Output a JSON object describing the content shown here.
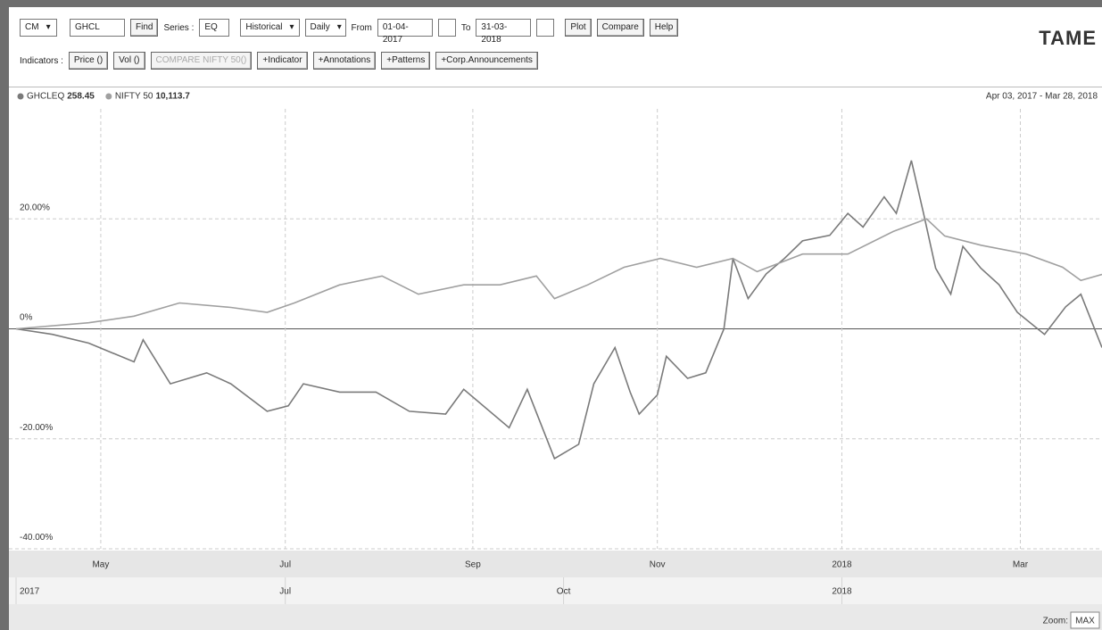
{
  "toolbar": {
    "row1": [
      "CM",
      "GHCL",
      "Find",
      "Series :",
      "EQ",
      "Historical",
      "Daily",
      "From",
      "01-04-2017",
      "To",
      "31-03-2018",
      "Plot",
      "Compare",
      "Help"
    ],
    "row2": [
      "Indicators :",
      "Price ()",
      "Vol ()",
      "COMPARE NIFTY 50()",
      "+Indicator",
      "+Annotations",
      "+Patterns",
      "+Corp.Announcements"
    ],
    "logo": "TAME"
  },
  "chart_data": {
    "type": "line",
    "date_range": "Apr 03, 2017 - Mar 28, 2018",
    "series": [
      {
        "name": "GHCLEQ",
        "last": "258.45",
        "color": "#7a7a7a",
        "x": [
          0,
          12,
          24,
          39,
          42,
          51,
          63,
          71,
          83,
          90,
          95,
          107,
          119,
          130,
          142,
          148,
          163,
          169,
          178,
          186,
          191,
          198,
          203,
          206,
          212,
          215,
          222,
          228,
          234,
          237,
          242,
          248,
          254,
          260,
          269,
          275,
          280,
          287,
          291,
          296,
          300,
          304,
          309,
          313,
          319,
          325,
          331,
          340,
          347,
          352,
          359
        ],
        "values": [
          0,
          -1,
          -2.6,
          -6,
          -2,
          -10,
          -8,
          -10,
          -15,
          -14,
          -10,
          -11.5,
          -11.5,
          -15,
          -15.5,
          -11,
          -18,
          -11,
          -23.6,
          -21,
          -10,
          -3.4,
          -11.5,
          -15.5,
          -12,
          -5,
          -9,
          -8,
          0,
          12.8,
          5.5,
          10,
          12.8,
          16,
          17,
          21,
          18.5,
          24,
          21,
          30.6,
          21,
          11,
          6.3,
          15,
          11,
          8,
          3,
          -1,
          4,
          6.3,
          -3.4
        ]
      },
      {
        "name": "NIFTY 50",
        "last": "10,113.7",
        "color": "#a0a0a0",
        "x": [
          0,
          24,
          39,
          54,
          71,
          83,
          92,
          107,
          121,
          133,
          148,
          160,
          172,
          178,
          189,
          201,
          213,
          225,
          237,
          245,
          260,
          275,
          290,
          301,
          307,
          319,
          334,
          346,
          352,
          359
        ],
        "values": [
          0,
          1.1,
          2.3,
          4.7,
          3.9,
          3,
          4.7,
          8,
          9.6,
          6.3,
          8,
          8,
          9.6,
          5.5,
          8,
          11.2,
          12.8,
          11.2,
          12.8,
          10.4,
          13.6,
          13.6,
          17.7,
          20,
          16.9,
          15.2,
          13.6,
          11.2,
          8.8,
          9.9
        ]
      }
    ],
    "xlim": [
      0,
      359
    ],
    "xticks": [
      {
        "value": 28,
        "label": "May"
      },
      {
        "value": 89,
        "label": "Jul"
      },
      {
        "value": 151,
        "label": "Sep"
      },
      {
        "value": 212,
        "label": "Nov"
      },
      {
        "value": 273,
        "label": "2018"
      },
      {
        "value": 332,
        "label": "Mar"
      }
    ],
    "navigator_ticks": [
      {
        "value": 0,
        "label": "2017"
      },
      {
        "value": 89,
        "label": "Jul"
      },
      {
        "value": 181,
        "label": "Oct"
      },
      {
        "value": 273,
        "label": "2018"
      }
    ],
    "ylim": [
      -40,
      40
    ],
    "yticks": [
      {
        "value": -40,
        "label": "-40.00%"
      },
      {
        "value": -20,
        "label": "-20.00%"
      },
      {
        "value": 0,
        "label": "0%"
      },
      {
        "value": 20,
        "label": "20.00%"
      }
    ],
    "grid": true,
    "zoom_label": "Zoom:",
    "zoom_value": "MAX"
  }
}
